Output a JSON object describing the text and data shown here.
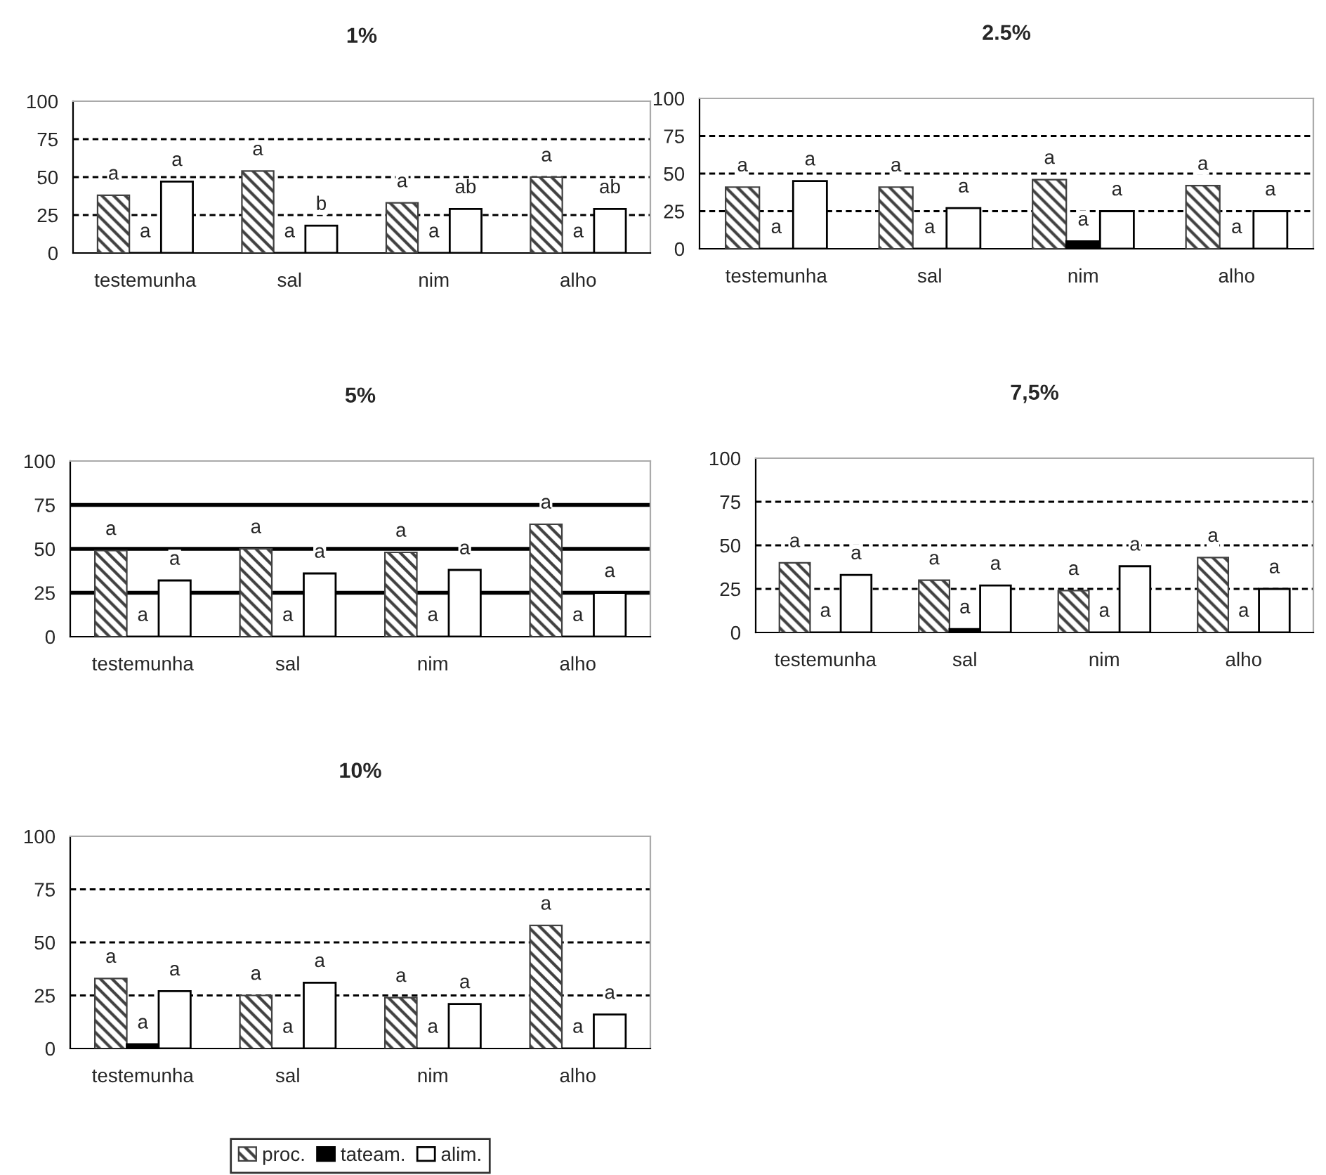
{
  "chart_data": [
    {
      "type": "bar",
      "title": "1%",
      "categories": [
        "testemunha",
        "sal",
        "nim",
        "alho"
      ],
      "ylim": [
        0,
        100
      ],
      "yticks": [
        0,
        25,
        50,
        75,
        100
      ],
      "series": [
        {
          "color": "#404040",
          "values": [
            38,
            54,
            33,
            50
          ],
          "value_labels": [
            "a",
            "a",
            "a",
            "a"
          ]
        },
        {
          "color": "#000000",
          "values": [
            0,
            0,
            0,
            0
          ],
          "value_labels": [
            "a",
            "a",
            "a",
            "a"
          ]
        },
        {
          "color": "#ffffff",
          "values": [
            47,
            18,
            29,
            29
          ],
          "value_labels": [
            "a",
            "b",
            "ab",
            "ab"
          ]
        }
      ],
      "ref_lines": [
        {
          "axis": "y",
          "value": 25,
          "line_style": "dashed"
        },
        {
          "axis": "y",
          "value": 50,
          "line_style": "dashed"
        },
        {
          "axis": "y",
          "value": 75,
          "line_style": "dashed"
        }
      ]
    },
    {
      "type": "bar",
      "title": "2.5%",
      "categories": [
        "testemunha",
        "sal",
        "nim",
        "alho"
      ],
      "ylim": [
        0,
        100
      ],
      "yticks": [
        0,
        25,
        50,
        75,
        100
      ],
      "series": [
        {
          "color": "#404040",
          "values": [
            41,
            41,
            46,
            42
          ],
          "value_labels": [
            "a",
            "a",
            "a",
            "a"
          ]
        },
        {
          "color": "#000000",
          "values": [
            0,
            0,
            5,
            0
          ],
          "value_labels": [
            "a",
            "a",
            "a",
            "a"
          ]
        },
        {
          "color": "#ffffff",
          "values": [
            45,
            27,
            25,
            25
          ],
          "value_labels": [
            "a",
            "a",
            "a",
            "a"
          ]
        }
      ],
      "ref_lines": [
        {
          "axis": "y",
          "value": 25,
          "line_style": "dashed"
        },
        {
          "axis": "y",
          "value": 50,
          "line_style": "dashed"
        },
        {
          "axis": "y",
          "value": 75,
          "line_style": "dashed"
        }
      ]
    },
    {
      "type": "bar",
      "title": "5%",
      "categories": [
        "testemunha",
        "sal",
        "nim",
        "alho"
      ],
      "ylim": [
        0,
        100
      ],
      "yticks": [
        0,
        25,
        50,
        75,
        100
      ],
      "series": [
        {
          "color": "#404040",
          "values": [
            49,
            50,
            48,
            64
          ],
          "value_labels": [
            "a",
            "a",
            "a",
            "a"
          ]
        },
        {
          "color": "#000000",
          "values": [
            0,
            0,
            0,
            0
          ],
          "value_labels": [
            "a",
            "a",
            "a",
            "a"
          ]
        },
        {
          "color": "#ffffff",
          "values": [
            32,
            36,
            38,
            25
          ],
          "value_labels": [
            "a",
            "a",
            "a",
            "a"
          ]
        }
      ],
      "ref_lines": [
        {
          "axis": "y",
          "value": 25,
          "line_style": "solid"
        },
        {
          "axis": "y",
          "value": 50,
          "line_style": "solid"
        },
        {
          "axis": "y",
          "value": 75,
          "line_style": "solid"
        }
      ]
    },
    {
      "type": "bar",
      "title": "7,5%",
      "categories": [
        "testemunha",
        "sal",
        "nim",
        "alho"
      ],
      "ylim": [
        0,
        100
      ],
      "yticks": [
        0,
        25,
        50,
        75,
        100
      ],
      "series": [
        {
          "color": "#404040",
          "values": [
            40,
            30,
            24,
            43
          ],
          "value_labels": [
            "a",
            "a",
            "a",
            "a"
          ]
        },
        {
          "color": "#000000",
          "values": [
            0,
            2,
            0,
            0
          ],
          "value_labels": [
            "a",
            "a",
            "a",
            "a"
          ]
        },
        {
          "color": "#ffffff",
          "values": [
            33,
            27,
            38,
            25
          ],
          "value_labels": [
            "a",
            "a",
            "a",
            "a"
          ]
        }
      ],
      "ref_lines": [
        {
          "axis": "y",
          "value": 25,
          "line_style": "dashed"
        },
        {
          "axis": "y",
          "value": 50,
          "line_style": "dashed"
        },
        {
          "axis": "y",
          "value": 75,
          "line_style": "dashed"
        }
      ]
    },
    {
      "type": "bar",
      "title": "10%",
      "categories": [
        "testemunha",
        "sal",
        "nim",
        "alho"
      ],
      "ylim": [
        0,
        100
      ],
      "yticks": [
        0,
        25,
        50,
        75,
        100
      ],
      "legend": "bottom",
      "series": [
        {
          "name": "proc.",
          "color": "#404040",
          "values": [
            33,
            25,
            24,
            58
          ],
          "value_labels": [
            "a",
            "a",
            "a",
            "a"
          ]
        },
        {
          "name": "tateam.",
          "color": "#000000",
          "values": [
            2,
            0,
            0,
            0
          ],
          "value_labels": [
            "a",
            "a",
            "a",
            "a"
          ]
        },
        {
          "name": "alim.",
          "color": "#ffffff",
          "values": [
            27,
            31,
            21,
            16
          ],
          "value_labels": [
            "a",
            "a",
            "a",
            "a"
          ]
        }
      ],
      "ref_lines": [
        {
          "axis": "y",
          "value": 25,
          "line_style": "dashed"
        },
        {
          "axis": "y",
          "value": 50,
          "line_style": "dashed"
        },
        {
          "axis": "y",
          "value": 75,
          "line_style": "dashed"
        }
      ]
    }
  ]
}
